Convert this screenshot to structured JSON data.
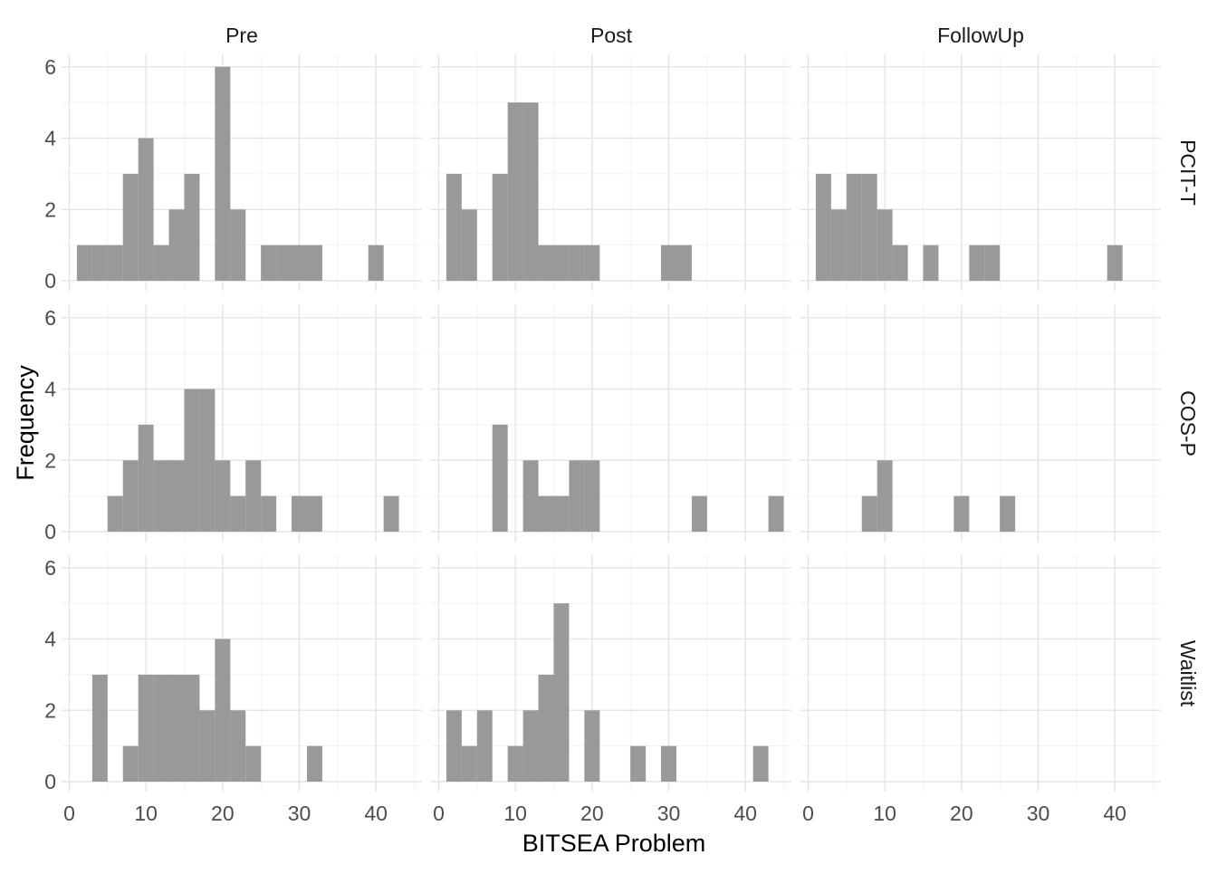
{
  "chart_data": {
    "type": "bar",
    "subtype": "faceted histogram",
    "bin_width": 2,
    "xlabel": "BITSEA Problem",
    "ylabel": "Frequency",
    "x_ticks": [
      0,
      10,
      20,
      30,
      40
    ],
    "y_ticks": [
      0,
      2,
      4,
      6
    ],
    "xlim": [
      -1,
      46
    ],
    "ylim": [
      0,
      6.3
    ],
    "grid": true,
    "bar_color": "#999999",
    "facet_columns": [
      "Pre",
      "Post",
      "FollowUp"
    ],
    "facet_rows": [
      "PCIT-T",
      "COS-P",
      "Waitlist"
    ],
    "panels": [
      {
        "row": "PCIT-T",
        "col": "Pre",
        "bins": [
          {
            "x0": 1,
            "count": 1
          },
          {
            "x0": 3,
            "count": 1
          },
          {
            "x0": 5,
            "count": 1
          },
          {
            "x0": 7,
            "count": 3
          },
          {
            "x0": 9,
            "count": 4
          },
          {
            "x0": 11,
            "count": 1
          },
          {
            "x0": 13,
            "count": 2
          },
          {
            "x0": 15,
            "count": 3
          },
          {
            "x0": 19,
            "count": 6
          },
          {
            "x0": 21,
            "count": 2
          },
          {
            "x0": 25,
            "count": 1
          },
          {
            "x0": 27,
            "count": 1
          },
          {
            "x0": 29,
            "count": 1
          },
          {
            "x0": 31,
            "count": 1
          },
          {
            "x0": 39,
            "count": 1
          }
        ]
      },
      {
        "row": "PCIT-T",
        "col": "Post",
        "bins": [
          {
            "x0": 1,
            "count": 3
          },
          {
            "x0": 3,
            "count": 2
          },
          {
            "x0": 7,
            "count": 3
          },
          {
            "x0": 9,
            "count": 5
          },
          {
            "x0": 11,
            "count": 5
          },
          {
            "x0": 13,
            "count": 1
          },
          {
            "x0": 15,
            "count": 1
          },
          {
            "x0": 17,
            "count": 1
          },
          {
            "x0": 19,
            "count": 1
          },
          {
            "x0": 29,
            "count": 1
          },
          {
            "x0": 31,
            "count": 1
          }
        ]
      },
      {
        "row": "PCIT-T",
        "col": "FollowUp",
        "bins": [
          {
            "x0": 1,
            "count": 3
          },
          {
            "x0": 3,
            "count": 2
          },
          {
            "x0": 5,
            "count": 3
          },
          {
            "x0": 7,
            "count": 3
          },
          {
            "x0": 9,
            "count": 2
          },
          {
            "x0": 11,
            "count": 1
          },
          {
            "x0": 15,
            "count": 1
          },
          {
            "x0": 21,
            "count": 1
          },
          {
            "x0": 23,
            "count": 1
          },
          {
            "x0": 39,
            "count": 1
          }
        ]
      },
      {
        "row": "COS-P",
        "col": "Pre",
        "bins": [
          {
            "x0": 5,
            "count": 1
          },
          {
            "x0": 7,
            "count": 2
          },
          {
            "x0": 9,
            "count": 3
          },
          {
            "x0": 11,
            "count": 2
          },
          {
            "x0": 13,
            "count": 2
          },
          {
            "x0": 15,
            "count": 4
          },
          {
            "x0": 17,
            "count": 4
          },
          {
            "x0": 19,
            "count": 2
          },
          {
            "x0": 21,
            "count": 1
          },
          {
            "x0": 23,
            "count": 2
          },
          {
            "x0": 25,
            "count": 1
          },
          {
            "x0": 29,
            "count": 1
          },
          {
            "x0": 31,
            "count": 1
          },
          {
            "x0": 41,
            "count": 1
          }
        ]
      },
      {
        "row": "COS-P",
        "col": "Post",
        "bins": [
          {
            "x0": 7,
            "count": 3
          },
          {
            "x0": 11,
            "count": 2
          },
          {
            "x0": 13,
            "count": 1
          },
          {
            "x0": 15,
            "count": 1
          },
          {
            "x0": 17,
            "count": 2
          },
          {
            "x0": 19,
            "count": 2
          },
          {
            "x0": 33,
            "count": 1
          },
          {
            "x0": 43,
            "count": 1
          }
        ]
      },
      {
        "row": "COS-P",
        "col": "FollowUp",
        "bins": [
          {
            "x0": 7,
            "count": 1
          },
          {
            "x0": 9,
            "count": 2
          },
          {
            "x0": 19,
            "count": 1
          },
          {
            "x0": 25,
            "count": 1
          }
        ]
      },
      {
        "row": "Waitlist",
        "col": "Pre",
        "bins": [
          {
            "x0": 3,
            "count": 3
          },
          {
            "x0": 7,
            "count": 1
          },
          {
            "x0": 9,
            "count": 3
          },
          {
            "x0": 11,
            "count": 3
          },
          {
            "x0": 13,
            "count": 3
          },
          {
            "x0": 15,
            "count": 3
          },
          {
            "x0": 17,
            "count": 2
          },
          {
            "x0": 19,
            "count": 4
          },
          {
            "x0": 21,
            "count": 2
          },
          {
            "x0": 23,
            "count": 1
          },
          {
            "x0": 31,
            "count": 1
          }
        ]
      },
      {
        "row": "Waitlist",
        "col": "Post",
        "bins": [
          {
            "x0": 1,
            "count": 2
          },
          {
            "x0": 3,
            "count": 1
          },
          {
            "x0": 5,
            "count": 2
          },
          {
            "x0": 9,
            "count": 1
          },
          {
            "x0": 11,
            "count": 2
          },
          {
            "x0": 13,
            "count": 3
          },
          {
            "x0": 15,
            "count": 5
          },
          {
            "x0": 19,
            "count": 2
          },
          {
            "x0": 25,
            "count": 1
          },
          {
            "x0": 29,
            "count": 1
          },
          {
            "x0": 41,
            "count": 1
          }
        ]
      },
      {
        "row": "Waitlist",
        "col": "FollowUp",
        "bins": []
      }
    ]
  }
}
